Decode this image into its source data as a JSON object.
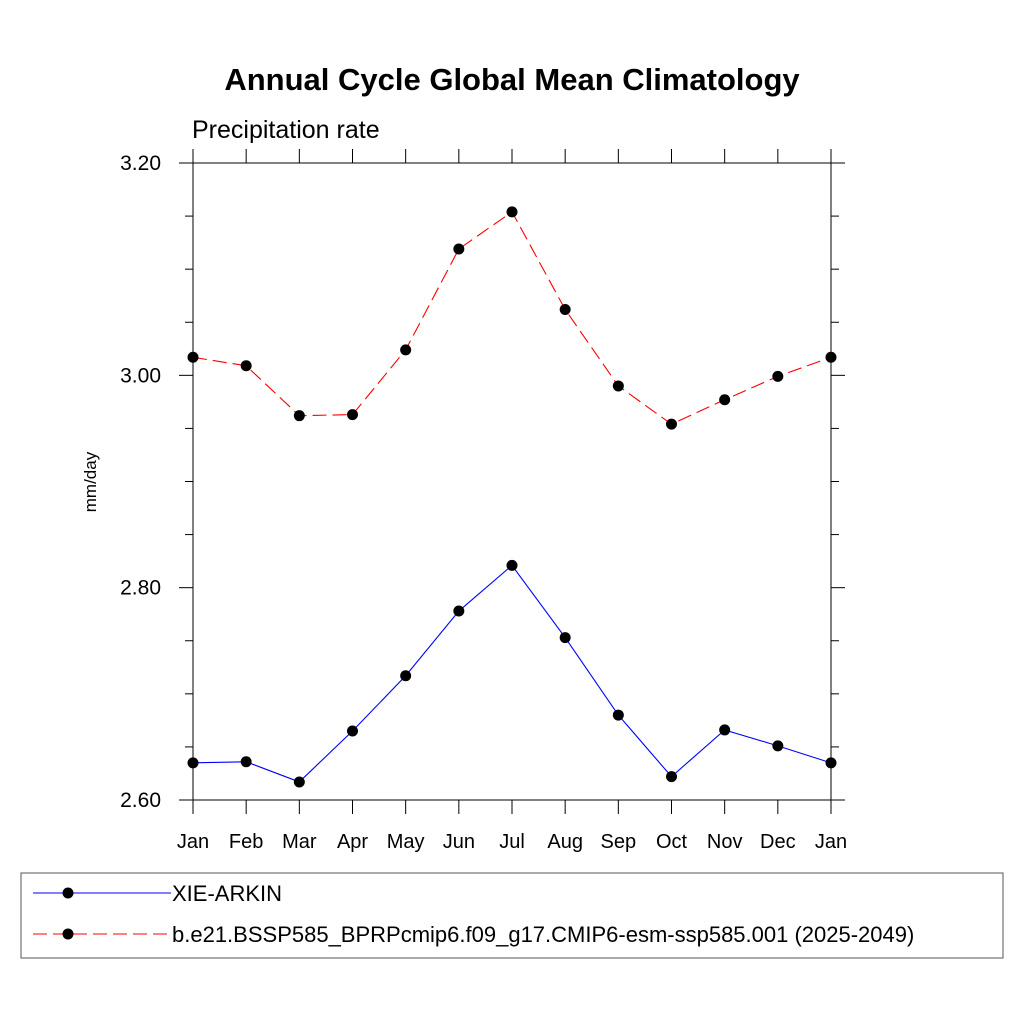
{
  "chart_data": {
    "type": "line",
    "title": "Annual Cycle Global Mean Climatology",
    "subtitle": "Precipitation rate",
    "xlabel": "",
    "ylabel": "mm/day",
    "ylim": [
      2.6,
      3.2
    ],
    "yticks": [
      "2.60",
      "2.80",
      "3.00",
      "3.20"
    ],
    "categories": [
      "Jan",
      "Feb",
      "Mar",
      "Apr",
      "May",
      "Jun",
      "Jul",
      "Aug",
      "Sep",
      "Oct",
      "Nov",
      "Dec",
      "Jan"
    ],
    "series": [
      {
        "name": "XIE-ARKIN",
        "color": "#0000ff",
        "dash": "solid",
        "values": [
          2.635,
          2.636,
          2.617,
          2.665,
          2.717,
          2.778,
          2.821,
          2.753,
          2.68,
          2.622,
          2.666,
          2.651,
          2.635
        ]
      },
      {
        "name": "b.e21.BSSP585_BPRPcmip6.f09_g17.CMIP6-esm-ssp585.001 (2025-2049)",
        "color": "#ff0000",
        "dash": "dashed",
        "values": [
          3.017,
          3.009,
          2.962,
          2.963,
          3.024,
          3.119,
          3.154,
          3.062,
          2.99,
          2.954,
          2.977,
          2.999,
          3.017
        ]
      }
    ],
    "legend_position": "bottom"
  }
}
